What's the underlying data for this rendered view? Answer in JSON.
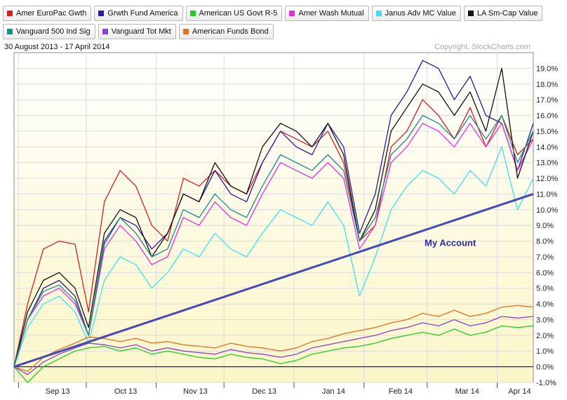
{
  "legend": {
    "row1": [
      {
        "label": "Amer EuroPac Gwth",
        "color": "#d62020"
      },
      {
        "label": "Grwth Fund America",
        "color": "#2a1aa0"
      },
      {
        "label": "American US Govt R-5",
        "color": "#22cc22"
      },
      {
        "label": "Amer Wash Mutual",
        "color": "#e030e0"
      },
      {
        "label": "Janus Adv MC Value",
        "color": "#40e0f0"
      },
      {
        "label": "LA Sm-Cap Value",
        "color": "#111111"
      }
    ],
    "row2": [
      {
        "label": "Vanguard 500 Ind Sig",
        "color": "#1a8a8a"
      },
      {
        "label": "Vanguard Tot Mkt",
        "color": "#8a40d0"
      },
      {
        "label": "American Funds Bond",
        "color": "#e07020"
      }
    ]
  },
  "chart": {
    "date_range": "30 August 2013 - 17 April 2014",
    "copyright": "Copyright, StockCharts.com",
    "annotation": "My Account",
    "x_ticks": [
      "Sep 13",
      "Oct 13",
      "Nov 13",
      "Dec 13",
      "Jan 14",
      "Feb 14",
      "Mar 14",
      "Apr 14"
    ],
    "y_ticks": [
      "-1.0%",
      "0.0%",
      "1.0%",
      "2.0%",
      "3.0%",
      "4.0%",
      "5.0%",
      "6.0%",
      "7.0%",
      "8.0%",
      "9.0%",
      "10.0%",
      "11.0%",
      "12.0%",
      "13.0%",
      "14.0%",
      "15.0%",
      "16.0%",
      "17.0%",
      "18.0%",
      "19.0%"
    ]
  },
  "chart_data": {
    "type": "line",
    "x_range": [
      "2013-08-30",
      "2014-04-17"
    ],
    "ylim": [
      -1.0,
      20.0
    ],
    "y_unit": "%",
    "grid": true,
    "legend_placement": "top",
    "series": [
      {
        "name": "Amer EuroPac Gwth",
        "color": "#d62020",
        "x": [
          "2013-08-30",
          "2013-09-05",
          "2013-09-12",
          "2013-09-19",
          "2013-09-26",
          "2013-10-02",
          "2013-10-09",
          "2013-10-16",
          "2013-10-23",
          "2013-10-30",
          "2013-11-06",
          "2013-11-13",
          "2013-11-20",
          "2013-11-27",
          "2013-12-04",
          "2013-12-11",
          "2013-12-18",
          "2013-12-26",
          "2014-01-02",
          "2014-01-09",
          "2014-01-16",
          "2014-01-23",
          "2014-01-30",
          "2014-02-06",
          "2014-02-13",
          "2014-02-20",
          "2014-02-27",
          "2014-03-06",
          "2014-03-13",
          "2014-03-20",
          "2014-03-27",
          "2014-04-03",
          "2014-04-10",
          "2014-04-17"
        ],
        "values": [
          0,
          4.0,
          7.5,
          8.0,
          7.8,
          3.5,
          10.5,
          12.5,
          11.5,
          9.0,
          8.0,
          12.0,
          11.5,
          12.5,
          11.5,
          11.0,
          13.0,
          15.0,
          14.5,
          14.0,
          15.0,
          13.0,
          8.0,
          9.0,
          14.0,
          15.0,
          17.0,
          16.0,
          14.5,
          16.5,
          14.0,
          16.0,
          13.5,
          14.5
        ]
      },
      {
        "name": "Grwth Fund America",
        "color": "#2a1aa0",
        "x": [
          "2013-08-30",
          "2013-09-05",
          "2013-09-12",
          "2013-09-19",
          "2013-09-26",
          "2013-10-02",
          "2013-10-09",
          "2013-10-16",
          "2013-10-23",
          "2013-10-30",
          "2013-11-06",
          "2013-11-13",
          "2013-11-20",
          "2013-11-27",
          "2013-12-04",
          "2013-12-11",
          "2013-12-18",
          "2013-12-26",
          "2014-01-02",
          "2014-01-09",
          "2014-01-16",
          "2014-01-23",
          "2014-01-30",
          "2014-02-06",
          "2014-02-13",
          "2014-02-20",
          "2014-02-27",
          "2014-03-06",
          "2014-03-13",
          "2014-03-20",
          "2014-03-27",
          "2014-04-03",
          "2014-04-10",
          "2014-04-17"
        ],
        "values": [
          0,
          3.0,
          5.0,
          5.5,
          4.5,
          2.0,
          8.0,
          9.5,
          9.0,
          7.5,
          8.5,
          11.0,
          10.5,
          12.5,
          11.0,
          10.5,
          13.0,
          15.0,
          14.0,
          13.5,
          15.5,
          14.0,
          8.5,
          11.0,
          16.0,
          17.5,
          19.5,
          19.0,
          17.0,
          18.5,
          16.0,
          15.5,
          12.5,
          15.5
        ]
      },
      {
        "name": "American US Govt R-5",
        "color": "#22cc22",
        "x": [
          "2013-08-30",
          "2013-09-05",
          "2013-09-12",
          "2013-09-19",
          "2013-09-26",
          "2013-10-02",
          "2013-10-09",
          "2013-10-16",
          "2013-10-23",
          "2013-10-30",
          "2013-11-06",
          "2013-11-13",
          "2013-11-20",
          "2013-11-27",
          "2013-12-04",
          "2013-12-11",
          "2013-12-18",
          "2013-12-26",
          "2014-01-02",
          "2014-01-09",
          "2014-01-16",
          "2014-01-23",
          "2014-01-30",
          "2014-02-06",
          "2014-02-13",
          "2014-02-20",
          "2014-02-27",
          "2014-03-06",
          "2014-03-13",
          "2014-03-20",
          "2014-03-27",
          "2014-04-03",
          "2014-04-10",
          "2014-04-17"
        ],
        "values": [
          0,
          -1.0,
          0.0,
          0.5,
          1.0,
          1.2,
          1.3,
          1.0,
          1.2,
          0.8,
          1.0,
          0.8,
          0.6,
          0.5,
          0.8,
          0.6,
          0.5,
          0.2,
          0.4,
          0.8,
          1.0,
          1.2,
          1.3,
          1.5,
          1.8,
          2.0,
          2.2,
          2.0,
          2.4,
          2.0,
          2.2,
          2.6,
          2.5,
          2.6
        ]
      },
      {
        "name": "Amer Wash Mutual",
        "color": "#e030e0",
        "x": [
          "2013-08-30",
          "2013-09-05",
          "2013-09-12",
          "2013-09-19",
          "2013-09-26",
          "2013-10-02",
          "2013-10-09",
          "2013-10-16",
          "2013-10-23",
          "2013-10-30",
          "2013-11-06",
          "2013-11-13",
          "2013-11-20",
          "2013-11-27",
          "2013-12-04",
          "2013-12-11",
          "2013-12-18",
          "2013-12-26",
          "2014-01-02",
          "2014-01-09",
          "2014-01-16",
          "2014-01-23",
          "2014-01-30",
          "2014-02-06",
          "2014-02-13",
          "2014-02-20",
          "2014-02-27",
          "2014-03-06",
          "2014-03-13",
          "2014-03-20",
          "2014-03-27",
          "2014-04-03",
          "2014-04-10",
          "2014-04-17"
        ],
        "values": [
          0,
          3.0,
          4.5,
          5.0,
          4.0,
          2.0,
          7.5,
          9.0,
          8.0,
          6.5,
          7.0,
          9.5,
          9.0,
          10.5,
          9.5,
          9.0,
          11.0,
          13.0,
          12.5,
          12.0,
          13.0,
          12.0,
          7.5,
          9.0,
          13.0,
          14.0,
          15.5,
          15.0,
          14.0,
          15.5,
          14.0,
          15.5,
          12.5,
          14.5
        ]
      },
      {
        "name": "Janus Adv MC Value",
        "color": "#40e0f0",
        "x": [
          "2013-08-30",
          "2013-09-05",
          "2013-09-12",
          "2013-09-19",
          "2013-09-26",
          "2013-10-02",
          "2013-10-09",
          "2013-10-16",
          "2013-10-23",
          "2013-10-30",
          "2013-11-06",
          "2013-11-13",
          "2013-11-20",
          "2013-11-27",
          "2013-12-04",
          "2013-12-11",
          "2013-12-18",
          "2013-12-26",
          "2014-01-02",
          "2014-01-09",
          "2014-01-16",
          "2014-01-23",
          "2014-01-30",
          "2014-02-06",
          "2014-02-13",
          "2014-02-20",
          "2014-02-27",
          "2014-03-06",
          "2014-03-13",
          "2014-03-20",
          "2014-03-27",
          "2014-04-03",
          "2014-04-10",
          "2014-04-17"
        ],
        "values": [
          0,
          2.5,
          4.0,
          4.5,
          3.5,
          1.5,
          5.5,
          7.0,
          6.5,
          5.0,
          6.0,
          7.5,
          7.0,
          8.5,
          7.5,
          7.0,
          8.5,
          10.0,
          9.5,
          9.0,
          10.5,
          9.0,
          4.5,
          7.0,
          10.0,
          11.5,
          12.5,
          12.0,
          11.0,
          12.5,
          11.5,
          14.0,
          10.0,
          12.0
        ]
      },
      {
        "name": "LA Sm-Cap Value",
        "color": "#111111",
        "x": [
          "2013-08-30",
          "2013-09-05",
          "2013-09-12",
          "2013-09-19",
          "2013-09-26",
          "2013-10-02",
          "2013-10-09",
          "2013-10-16",
          "2013-10-23",
          "2013-10-30",
          "2013-11-06",
          "2013-11-13",
          "2013-11-20",
          "2013-11-27",
          "2013-12-04",
          "2013-12-11",
          "2013-12-18",
          "2013-12-26",
          "2014-01-02",
          "2014-01-09",
          "2014-01-16",
          "2014-01-23",
          "2014-01-30",
          "2014-02-06",
          "2014-02-13",
          "2014-02-20",
          "2014-02-27",
          "2014-03-06",
          "2014-03-13",
          "2014-03-20",
          "2014-03-27",
          "2014-04-03",
          "2014-04-10",
          "2014-04-17"
        ],
        "values": [
          0,
          3.5,
          5.5,
          6.0,
          5.0,
          2.5,
          8.5,
          10.0,
          9.5,
          7.0,
          8.5,
          11.0,
          10.5,
          13.0,
          11.5,
          11.0,
          14.0,
          15.5,
          15.0,
          14.0,
          15.5,
          13.5,
          8.0,
          10.0,
          15.0,
          16.5,
          18.0,
          17.5,
          16.0,
          17.5,
          15.0,
          19.0,
          12.0,
          15.0
        ]
      },
      {
        "name": "Vanguard 500 Ind Sig",
        "color": "#1a8a8a",
        "x": [
          "2013-08-30",
          "2013-09-05",
          "2013-09-12",
          "2013-09-19",
          "2013-09-26",
          "2013-10-02",
          "2013-10-09",
          "2013-10-16",
          "2013-10-23",
          "2013-10-30",
          "2013-11-06",
          "2013-11-13",
          "2013-11-20",
          "2013-11-27",
          "2013-12-04",
          "2013-12-11",
          "2013-12-18",
          "2013-12-26",
          "2014-01-02",
          "2014-01-09",
          "2014-01-16",
          "2014-01-23",
          "2014-01-30",
          "2014-02-06",
          "2014-02-13",
          "2014-02-20",
          "2014-02-27",
          "2014-03-06",
          "2014-03-13",
          "2014-03-20",
          "2014-03-27",
          "2014-04-03",
          "2014-04-10",
          "2014-04-17"
        ],
        "values": [
          0,
          3.0,
          4.8,
          5.2,
          4.2,
          2.0,
          7.8,
          9.5,
          8.5,
          7.0,
          7.5,
          10.0,
          9.5,
          11.0,
          10.0,
          9.5,
          11.5,
          13.5,
          13.0,
          12.5,
          13.5,
          12.5,
          8.0,
          9.5,
          13.5,
          14.5,
          16.0,
          15.5,
          14.5,
          16.0,
          14.5,
          16.0,
          13.0,
          15.0
        ]
      },
      {
        "name": "Vanguard Tot Mkt",
        "color": "#8a40d0",
        "x": [
          "2013-08-30",
          "2013-09-05",
          "2013-09-12",
          "2013-09-19",
          "2013-09-26",
          "2013-10-02",
          "2013-10-09",
          "2013-10-16",
          "2013-10-23",
          "2013-10-30",
          "2013-11-06",
          "2013-11-13",
          "2013-11-20",
          "2013-11-27",
          "2013-12-04",
          "2013-12-11",
          "2013-12-18",
          "2013-12-26",
          "2014-01-02",
          "2014-01-09",
          "2014-01-16",
          "2014-01-23",
          "2014-01-30",
          "2014-02-06",
          "2014-02-13",
          "2014-02-20",
          "2014-02-27",
          "2014-03-06",
          "2014-03-13",
          "2014-03-20",
          "2014-03-27",
          "2014-04-03",
          "2014-04-10",
          "2014-04-17"
        ],
        "values": [
          0,
          -0.5,
          0.3,
          0.8,
          1.2,
          1.5,
          1.4,
          1.2,
          1.4,
          1.0,
          1.2,
          1.0,
          0.9,
          0.8,
          1.1,
          0.9,
          0.8,
          0.6,
          0.8,
          1.2,
          1.4,
          1.6,
          1.8,
          2.0,
          2.3,
          2.5,
          2.8,
          2.6,
          3.0,
          2.6,
          2.8,
          3.2,
          3.1,
          3.2
        ]
      },
      {
        "name": "American Funds Bond",
        "color": "#e07020",
        "x": [
          "2013-08-30",
          "2013-09-05",
          "2013-09-12",
          "2013-09-19",
          "2013-09-26",
          "2013-10-02",
          "2013-10-09",
          "2013-10-16",
          "2013-10-23",
          "2013-10-30",
          "2013-11-06",
          "2013-11-13",
          "2013-11-20",
          "2013-11-27",
          "2013-12-04",
          "2013-12-11",
          "2013-12-18",
          "2013-12-26",
          "2014-01-02",
          "2014-01-09",
          "2014-01-16",
          "2014-01-23",
          "2014-01-30",
          "2014-02-06",
          "2014-02-13",
          "2014-02-20",
          "2014-02-27",
          "2014-03-06",
          "2014-03-13",
          "2014-03-20",
          "2014-03-27",
          "2014-04-03",
          "2014-04-10",
          "2014-04-17"
        ],
        "values": [
          0,
          -0.3,
          0.6,
          1.1,
          1.5,
          1.9,
          1.8,
          1.6,
          1.8,
          1.5,
          1.6,
          1.4,
          1.3,
          1.2,
          1.5,
          1.3,
          1.2,
          1.0,
          1.2,
          1.6,
          1.8,
          2.1,
          2.3,
          2.5,
          2.8,
          3.0,
          3.4,
          3.2,
          3.6,
          3.2,
          3.4,
          3.8,
          3.9,
          3.8
        ]
      },
      {
        "name": "My Account",
        "color": "#4848b8",
        "x": [
          "2013-08-30",
          "2014-04-17"
        ],
        "values": [
          0,
          11.0
        ]
      }
    ]
  }
}
